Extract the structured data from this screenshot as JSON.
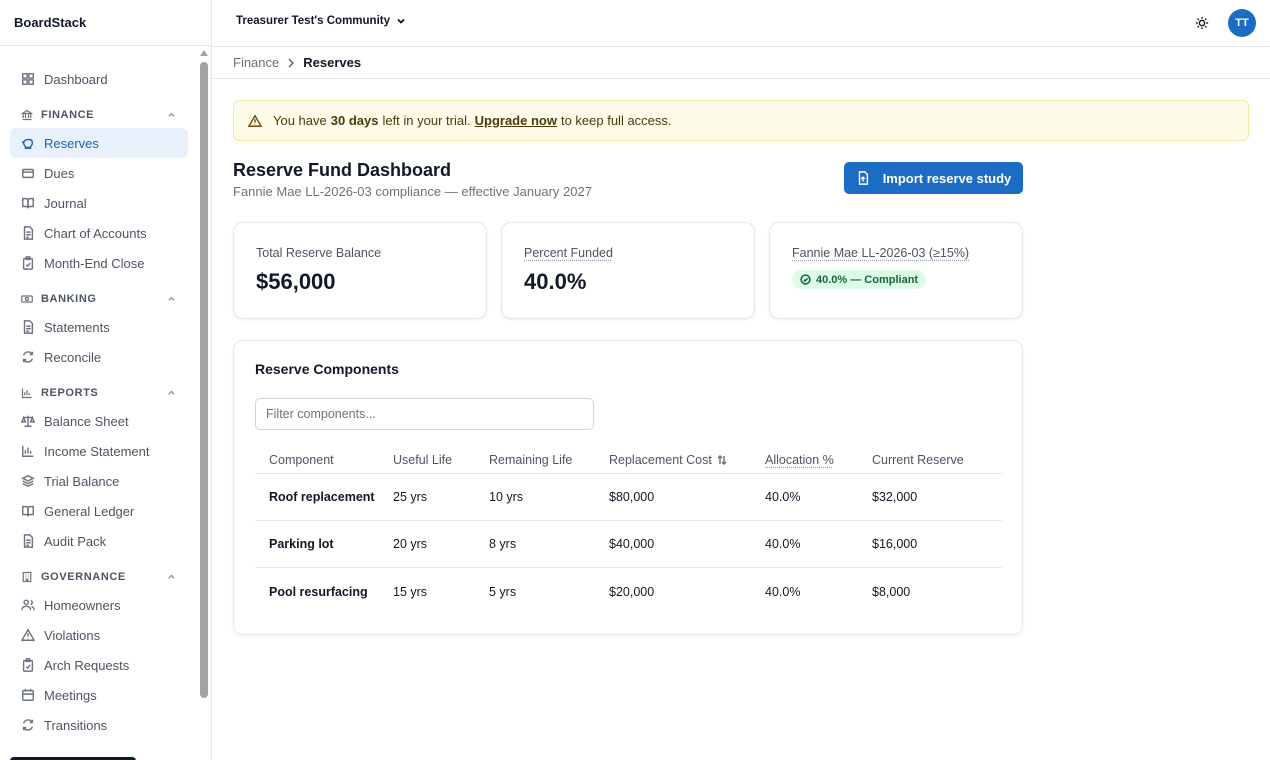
{
  "app": {
    "brand": "BoardStack"
  },
  "sidebar": {
    "items": [
      {
        "label": "Dashboard",
        "icon": "dashboard-icon"
      }
    ],
    "sections": [
      {
        "title": "FINANCE",
        "icon": "bank-icon",
        "items": [
          {
            "label": "Reserves",
            "icon": "piggy-bank-icon",
            "active": true
          },
          {
            "label": "Dues",
            "icon": "card-icon"
          },
          {
            "label": "Journal",
            "icon": "book-icon"
          },
          {
            "label": "Chart of Accounts",
            "icon": "document-icon"
          },
          {
            "label": "Month-End Close",
            "icon": "clipboard-check-icon"
          }
        ]
      },
      {
        "title": "BANKING",
        "icon": "banknote-icon",
        "items": [
          {
            "label": "Statements",
            "icon": "document-icon"
          },
          {
            "label": "Reconcile",
            "icon": "refresh-icon"
          }
        ]
      },
      {
        "title": "REPORTS",
        "icon": "bar-chart-icon",
        "items": [
          {
            "label": "Balance Sheet",
            "icon": "scale-icon"
          },
          {
            "label": "Income Statement",
            "icon": "bar-chart-icon"
          },
          {
            "label": "Trial Balance",
            "icon": "layers-icon"
          },
          {
            "label": "General Ledger",
            "icon": "book-icon"
          },
          {
            "label": "Audit Pack",
            "icon": "document-icon"
          }
        ]
      },
      {
        "title": "GOVERNANCE",
        "icon": "building-icon",
        "items": [
          {
            "label": "Homeowners",
            "icon": "users-icon"
          },
          {
            "label": "Violations",
            "icon": "alert-triangle-icon"
          },
          {
            "label": "Arch Requests",
            "icon": "clipboard-check-icon"
          },
          {
            "label": "Meetings",
            "icon": "calendar-icon"
          },
          {
            "label": "Transitions",
            "icon": "refresh-icon"
          }
        ]
      }
    ]
  },
  "header": {
    "community": "Treasurer Test's Community",
    "avatar_initials": "TT"
  },
  "breadcrumb": {
    "parent": "Finance",
    "current": "Reserves"
  },
  "banner": {
    "prefix": "You have",
    "days": "30 days",
    "middle": "left in your trial.",
    "link": "Upgrade now",
    "suffix": "to keep full access."
  },
  "page": {
    "title": "Reserve Fund Dashboard",
    "subtitle": "Fannie Mae LL-2026-03 compliance — effective January 2027",
    "import_button": "Import reserve study"
  },
  "stats": {
    "balance_label": "Total Reserve Balance",
    "balance_value": "$56,000",
    "funded_label": "Percent Funded",
    "funded_value": "40.0%",
    "compliance_label": "Fannie Mae LL-2026-03 (≥15%)",
    "compliance_badge": "40.0% — Compliant"
  },
  "components": {
    "title": "Reserve Components",
    "filter_placeholder": "Filter components...",
    "columns": {
      "component": "Component",
      "useful_life": "Useful Life",
      "remaining_life": "Remaining Life",
      "replacement_cost": "Replacement Cost",
      "allocation": "Allocation %",
      "current_reserve": "Current Reserve"
    },
    "rows": [
      {
        "component": "Roof replacement",
        "useful_life": "25 yrs",
        "remaining_life": "10 yrs",
        "replacement_cost": "$80,000",
        "allocation": "40.0%",
        "current_reserve": "$32,000"
      },
      {
        "component": "Parking lot",
        "useful_life": "20 yrs",
        "remaining_life": "8 yrs",
        "replacement_cost": "$40,000",
        "allocation": "40.0%",
        "current_reserve": "$16,000"
      },
      {
        "component": "Pool resurfacing",
        "useful_life": "15 yrs",
        "remaining_life": "5 yrs",
        "replacement_cost": "$20,000",
        "allocation": "40.0%",
        "current_reserve": "$8,000"
      }
    ]
  },
  "colors": {
    "accent": "#1d6cc4",
    "active_bg": "#e8f1fb",
    "banner_bg": "#fefbe8",
    "compliant_bg": "#dcfce7",
    "compliant_text": "#166534"
  }
}
